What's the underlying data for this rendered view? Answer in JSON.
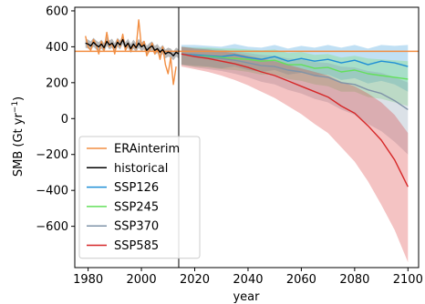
{
  "chart_data": {
    "type": "line",
    "xlabel": "year",
    "ylabel": "SMB (Gt yr",
    "ylabel_sup": "−1",
    "ylabel_end": ")",
    "xlim": [
      1975,
      2104
    ],
    "ylim": [
      -830,
      620
    ],
    "xticks": [
      1980,
      2000,
      2020,
      2040,
      2060,
      2080,
      2100
    ],
    "yticks": [
      600,
      400,
      200,
      0,
      -200,
      -400,
      -600
    ],
    "reference_line": {
      "value": 375,
      "color": "#f28e42"
    },
    "vertical_line": {
      "x": 2014,
      "color": "#000000"
    },
    "legend_position": "lower-left",
    "series": [
      {
        "name": "ERAinterim",
        "color": "#f28e42",
        "x": [
          1979,
          1980,
          1981,
          1982,
          1983,
          1984,
          1985,
          1986,
          1987,
          1988,
          1989,
          1990,
          1991,
          1992,
          1993,
          1994,
          1995,
          1996,
          1997,
          1998,
          1999,
          2000,
          2001,
          2002,
          2003,
          2004,
          2005,
          2006,
          2007,
          2008,
          2009,
          2010,
          2011,
          2012,
          2013
        ],
        "y": [
          460,
          400,
          380,
          440,
          410,
          360,
          430,
          380,
          480,
          400,
          420,
          360,
          440,
          400,
          470,
          380,
          420,
          380,
          410,
          390,
          550,
          400,
          430,
          350,
          380,
          420,
          360,
          390,
          330,
          400,
          300,
          250,
          340,
          190,
          290
        ]
      },
      {
        "name": "historical",
        "color": "#000000",
        "x": [
          1979,
          1980,
          1981,
          1982,
          1983,
          1984,
          1985,
          1986,
          1987,
          1988,
          1989,
          1990,
          1991,
          1992,
          1993,
          1994,
          1995,
          1996,
          1997,
          1998,
          1999,
          2000,
          2001,
          2002,
          2003,
          2004,
          2005,
          2006,
          2007,
          2008,
          2009,
          2010,
          2011,
          2012,
          2013,
          2014
        ],
        "y": [
          420,
          415,
          405,
          425,
          410,
          400,
          415,
          395,
          430,
          410,
          420,
          395,
          425,
          410,
          440,
          400,
          420,
          390,
          415,
          395,
          420,
          400,
          410,
          380,
          395,
          405,
          380,
          390,
          370,
          385,
          360,
          370,
          365,
          350,
          370,
          360
        ],
        "band_upper": [
          445,
          440,
          430,
          450,
          435,
          425,
          440,
          420,
          455,
          435,
          445,
          420,
          450,
          435,
          465,
          425,
          445,
          415,
          440,
          420,
          445,
          425,
          435,
          405,
          420,
          430,
          405,
          415,
          395,
          410,
          385,
          395,
          390,
          375,
          395,
          385
        ],
        "band_lower": [
          395,
          390,
          380,
          400,
          385,
          375,
          390,
          370,
          405,
          385,
          395,
          370,
          400,
          385,
          415,
          375,
          395,
          365,
          390,
          370,
          395,
          375,
          385,
          355,
          370,
          380,
          355,
          365,
          345,
          360,
          335,
          345,
          340,
          325,
          345,
          335
        ]
      },
      {
        "name": "SSP126",
        "color": "#1f8fd6",
        "x": [
          2015,
          2020,
          2025,
          2030,
          2035,
          2040,
          2045,
          2050,
          2055,
          2060,
          2065,
          2070,
          2075,
          2080,
          2085,
          2090,
          2095,
          2100
        ],
        "y": [
          360,
          355,
          350,
          345,
          355,
          340,
          330,
          345,
          320,
          335,
          320,
          330,
          310,
          325,
          300,
          320,
          310,
          290
        ],
        "band_upper": [
          410,
          410,
          405,
          400,
          415,
          400,
          395,
          410,
          390,
          405,
          395,
          410,
          395,
          410,
          390,
          410,
          405,
          410
        ],
        "band_lower": [
          300,
          295,
          290,
          280,
          290,
          270,
          260,
          270,
          245,
          255,
          240,
          245,
          215,
          225,
          195,
          210,
          190,
          150
        ]
      },
      {
        "name": "SSP245",
        "color": "#63e05a",
        "x": [
          2015,
          2020,
          2025,
          2030,
          2035,
          2040,
          2045,
          2050,
          2055,
          2060,
          2065,
          2070,
          2075,
          2080,
          2085,
          2090,
          2095,
          2100
        ],
        "y": [
          360,
          350,
          345,
          340,
          335,
          330,
          320,
          325,
          300,
          300,
          280,
          285,
          260,
          270,
          250,
          240,
          230,
          220
        ],
        "band_upper": [
          400,
          395,
          395,
          390,
          390,
          385,
          380,
          385,
          365,
          370,
          355,
          360,
          340,
          350,
          335,
          330,
          325,
          320
        ],
        "band_lower": [
          300,
          290,
          285,
          275,
          270,
          260,
          245,
          245,
          220,
          210,
          190,
          180,
          150,
          150,
          120,
          110,
          90,
          70
        ]
      },
      {
        "name": "SSP370",
        "color": "#7f93a8",
        "x": [
          2015,
          2020,
          2025,
          2030,
          2035,
          2040,
          2045,
          2050,
          2055,
          2060,
          2065,
          2070,
          2075,
          2080,
          2085,
          2090,
          2095,
          2100
        ],
        "y": [
          360,
          350,
          340,
          335,
          325,
          310,
          295,
          290,
          270,
          260,
          240,
          230,
          200,
          190,
          160,
          140,
          100,
          50
        ],
        "band_upper": [
          400,
          395,
          390,
          385,
          375,
          365,
          355,
          350,
          335,
          330,
          315,
          310,
          290,
          285,
          265,
          255,
          230,
          200
        ],
        "band_lower": [
          300,
          285,
          275,
          265,
          250,
          230,
          205,
          190,
          160,
          140,
          110,
          90,
          50,
          20,
          -30,
          -70,
          -130,
          -200
        ]
      },
      {
        "name": "SSP585",
        "color": "#d62728",
        "x": [
          2015,
          2020,
          2025,
          2030,
          2035,
          2040,
          2045,
          2050,
          2055,
          2060,
          2065,
          2070,
          2075,
          2080,
          2085,
          2090,
          2095,
          2100
        ],
        "y": [
          360,
          345,
          335,
          320,
          305,
          285,
          260,
          240,
          210,
          180,
          150,
          120,
          70,
          30,
          -40,
          -120,
          -230,
          -380
        ],
        "band_upper": [
          400,
          390,
          385,
          375,
          365,
          350,
          335,
          320,
          300,
          280,
          260,
          240,
          205,
          180,
          140,
          90,
          20,
          -80
        ],
        "band_lower": [
          290,
          275,
          260,
          240,
          215,
          185,
          150,
          115,
          70,
          25,
          -30,
          -80,
          -160,
          -240,
          -350,
          -480,
          -620,
          -800
        ]
      }
    ]
  }
}
